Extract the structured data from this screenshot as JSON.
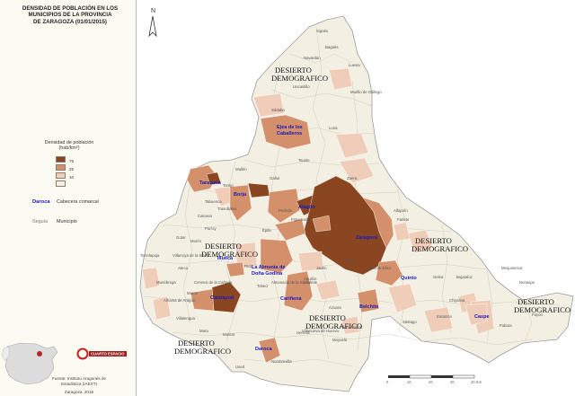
{
  "map": {
    "title": "DENSIDAD DE POBLACIÓN EN LOS\nMUNICIPIOS DE LA PROVINCIA\nDE ZARAGOZA (01/01/2015)",
    "north": "N",
    "legend": {
      "title": "Densidad de población",
      "unit": "(hab/km²)",
      "classes": [
        {
          "label": "75",
          "color": "#8a4620"
        },
        {
          "label": "25",
          "color": "#d3906a"
        },
        {
          "label": "10",
          "color": "#efcdb8"
        },
        {
          "label": "",
          "color": "#f3f0e3"
        }
      ]
    },
    "legend_examples": {
      "cabecera_sample": "Daroca",
      "cabecera_desc": "Cabecera comarcal",
      "muni_sample": "Seguía",
      "muni_desc": "Municipio"
    },
    "source": "Fuente: Instituto Aragonés de Estadística (IAEST)",
    "place_date": "Zaragoza, 2016",
    "logo_text": "CUARTO ESPACIO",
    "scale": {
      "labels": [
        "0",
        "10",
        "20",
        "30",
        "40 Km"
      ]
    },
    "desierto": {
      "line1": "DESIERTO",
      "line2": "DEMOGRAFICO"
    },
    "cabeceras": [
      "Ejea de los",
      "Caballeros",
      "Tarazona",
      "Borja",
      "Alagón",
      "Zaragoza",
      "Illueca",
      "La Almunia de",
      "Doña Godina",
      "Calatayud",
      "Cariñena",
      "Quinto",
      "Belchite",
      "Caspe",
      "Daroca"
    ],
    "municipios": [
      "Sigüés",
      "Bagüés",
      "Navardún",
      "Luesia",
      "Uncastillo",
      "Murillo de Gállego",
      "Luna",
      "Zuera",
      "Gelsa",
      "Fuendetodos",
      "Sádaba",
      "Tabuenca",
      "Trasobares",
      "Torrijo",
      "Calcena",
      "Purroy",
      "Ricla",
      "Tobed",
      "Aguilón",
      "Herrera",
      "Moyuela",
      "Alfajarín",
      "Farlete",
      "Bujaraloz",
      "Mequinenza",
      "Nonaspe",
      "Fabara",
      "Fayón",
      "Chiprana",
      "Escatrón",
      "Sástago",
      "Pina de Ebro",
      "Pastriz",
      "Jaulín",
      "Azuara",
      "Almonacid de la Sierra",
      "Cadrete",
      "Épila",
      "Mallén",
      "Gallur",
      "Tauste",
      "Pedrola",
      "Figueruelas",
      "Villanueva de Huerva",
      "Mainar",
      "Used",
      "Nombrevilla",
      "Mara",
      "Moros",
      "Alhama de Aragón",
      "Ateca",
      "Munébrega",
      "Cervera de la Cañada",
      "Villarroya de la Sierra",
      "Torrelapaja",
      "Gotor",
      "Morés",
      "Villalengua"
    ]
  }
}
